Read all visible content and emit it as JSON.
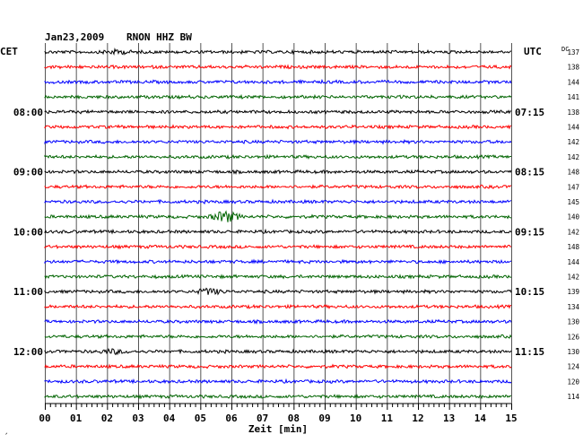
{
  "header": {
    "date": "Jan23,2009",
    "station": "RNON HHZ BW",
    "left_zone": "CET",
    "right_zone": "UTC",
    "dc_label": "DC"
  },
  "footer": {
    "corner_mark": "´"
  },
  "colors": {
    "trace_cycle": [
      "#000000",
      "#ff0000",
      "#0000ff",
      "#006400"
    ],
    "grid": "#555555",
    "text": "#000000"
  },
  "chart_data": {
    "type": "line",
    "title": "Jan23,2009   RNON HHZ BW",
    "xlabel": "Zeit [min]",
    "ylabel": "",
    "xlim": [
      0,
      15
    ],
    "x_ticks": [
      "00",
      "01",
      "02",
      "03",
      "04",
      "05",
      "06",
      "07",
      "08",
      "09",
      "10",
      "11",
      "12",
      "13",
      "14",
      "15"
    ],
    "grid": true,
    "left_time_labels": [
      {
        "row": 4,
        "text": "08:00"
      },
      {
        "row": 8,
        "text": "09:00"
      },
      {
        "row": 12,
        "text": "10:00"
      },
      {
        "row": 16,
        "text": "11:00"
      },
      {
        "row": 20,
        "text": "12:00"
      }
    ],
    "right_time_labels": [
      {
        "row": 4,
        "text": "07:15"
      },
      {
        "row": 8,
        "text": "08:15"
      },
      {
        "row": 12,
        "text": "09:15"
      },
      {
        "row": 16,
        "text": "10:15"
      },
      {
        "row": 20,
        "text": "11:15"
      }
    ],
    "dc_values": [
      137,
      138,
      144,
      141,
      138,
      144,
      142,
      142,
      148,
      147,
      145,
      140,
      142,
      148,
      144,
      142,
      139,
      134,
      130,
      126,
      130,
      124,
      120,
      114
    ],
    "events": [
      {
        "row": 0,
        "minute": 2.3,
        "amplitude": 2
      },
      {
        "row": 11,
        "minute": 5.8,
        "amplitude": 6
      },
      {
        "row": 16,
        "minute": 5.3,
        "amplitude": 3
      },
      {
        "row": 20,
        "minute": 2.2,
        "amplitude": 2
      }
    ]
  }
}
